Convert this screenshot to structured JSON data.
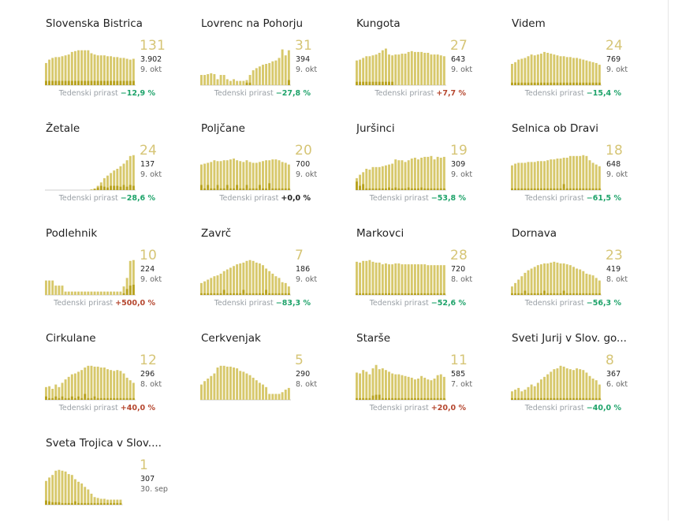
{
  "colors": {
    "bar": "#d7c86b",
    "bar_dark": "#b8a21e",
    "value": "#d6c576",
    "pos": "#b5462e",
    "neg": "#1ea36a",
    "zero": "#222222",
    "axis": "#cfcfcf"
  },
  "labels": {
    "growth_label": "Tedenski prirast"
  },
  "chart_data": [
    {
      "type": "bar",
      "title": "Slovenska Bistrica",
      "value": "131",
      "total": "3.902",
      "date": "9. okt",
      "growth": "−12,9 %",
      "growth_sign": "neg",
      "values": [
        52,
        60,
        64,
        66,
        66,
        68,
        70,
        72,
        78,
        80,
        82,
        82,
        82,
        82,
        75,
        72,
        70,
        70,
        70,
        68,
        68,
        66,
        66,
        64,
        64,
        62,
        60,
        62
      ],
      "dark": [
        10,
        10,
        10,
        10,
        10,
        10,
        10,
        10,
        10,
        10,
        10,
        10,
        10,
        10,
        10,
        10,
        10,
        10,
        10,
        10,
        10,
        10,
        10,
        10,
        10,
        10,
        10,
        10
      ]
    },
    {
      "type": "bar",
      "title": "Lovrenc na Pohorju",
      "value": "31",
      "total": "394",
      "date": "9. okt",
      "growth": "−27,8 %",
      "growth_sign": "neg",
      "values": [
        24,
        24,
        26,
        28,
        26,
        14,
        24,
        24,
        14,
        10,
        14,
        10,
        10,
        10,
        12,
        24,
        35,
        40,
        44,
        48,
        50,
        52,
        56,
        58,
        64,
        84,
        70,
        82
      ],
      "dark": [
        0,
        0,
        0,
        0,
        0,
        0,
        0,
        0,
        0,
        0,
        0,
        0,
        0,
        0,
        6,
        6,
        0,
        0,
        0,
        0,
        0,
        0,
        0,
        0,
        0,
        0,
        0,
        12
      ]
    },
    {
      "type": "bar",
      "title": "Kungota",
      "value": "27",
      "total": "643",
      "date": "9. okt",
      "growth": "+7,7 %",
      "growth_sign": "pos",
      "values": [
        58,
        60,
        64,
        68,
        68,
        70,
        72,
        76,
        82,
        86,
        72,
        70,
        72,
        72,
        74,
        74,
        78,
        80,
        78,
        78,
        78,
        76,
        76,
        72,
        72,
        72,
        70,
        68
      ],
      "dark": [
        8,
        8,
        8,
        8,
        8,
        8,
        8,
        8,
        8,
        8,
        8,
        8,
        0,
        0,
        0,
        0,
        0,
        0,
        0,
        0,
        0,
        0,
        0,
        0,
        0,
        0,
        0,
        0
      ]
    },
    {
      "type": "bar",
      "title": "Videm",
      "value": "24",
      "total": "769",
      "date": "9. okt",
      "growth": "−15,4 %",
      "growth_sign": "neg",
      "values": [
        50,
        54,
        60,
        62,
        64,
        68,
        72,
        70,
        72,
        74,
        78,
        76,
        74,
        72,
        70,
        68,
        68,
        66,
        66,
        64,
        64,
        62,
        60,
        58,
        56,
        54,
        52,
        48
      ],
      "dark": [
        6,
        6,
        6,
        6,
        6,
        6,
        6,
        6,
        6,
        6,
        6,
        6,
        6,
        6,
        6,
        6,
        6,
        6,
        6,
        6,
        6,
        6,
        6,
        6,
        6,
        6,
        6,
        6
      ]
    },
    {
      "type": "bar",
      "title": "Žetale",
      "value": "24",
      "total": "137",
      "date": "9. okt",
      "growth": "−28,6 %",
      "growth_sign": "neg",
      "values": [
        0,
        0,
        0,
        0,
        0,
        0,
        0,
        0,
        0,
        0,
        0,
        0,
        0,
        0,
        2,
        4,
        10,
        18,
        28,
        34,
        40,
        46,
        50,
        56,
        62,
        70,
        80,
        82
      ],
      "dark": [
        0,
        0,
        0,
        0,
        0,
        0,
        0,
        0,
        0,
        0,
        0,
        0,
        0,
        0,
        0,
        2,
        6,
        10,
        8,
        6,
        10,
        10,
        10,
        8,
        12,
        8,
        12,
        10
      ]
    },
    {
      "type": "bar",
      "title": "Poljčane",
      "value": "20",
      "total": "700",
      "date": "9. okt",
      "growth": "+0,0 %",
      "growth_sign": "zero",
      "values": [
        60,
        62,
        64,
        66,
        70,
        68,
        68,
        70,
        70,
        72,
        74,
        70,
        68,
        66,
        70,
        66,
        64,
        64,
        66,
        68,
        70,
        70,
        72,
        72,
        70,
        66,
        64,
        60
      ],
      "dark": [
        12,
        4,
        12,
        4,
        4,
        12,
        4,
        4,
        12,
        4,
        4,
        12,
        4,
        4,
        12,
        4,
        4,
        4,
        12,
        4,
        4,
        16,
        4,
        4,
        4,
        4,
        4,
        4
      ]
    },
    {
      "type": "bar",
      "title": "Juršinci",
      "value": "19",
      "total": "309",
      "date": "9. okt",
      "growth": "−53,8 %",
      "growth_sign": "neg",
      "values": [
        28,
        36,
        42,
        50,
        48,
        54,
        54,
        54,
        56,
        58,
        60,
        62,
        72,
        70,
        70,
        66,
        70,
        74,
        76,
        72,
        76,
        78,
        78,
        80,
        72,
        78,
        76,
        78
      ],
      "dark": [
        20,
        10,
        14,
        4,
        4,
        4,
        4,
        4,
        4,
        4,
        6,
        4,
        6,
        4,
        4,
        4,
        6,
        4,
        4,
        4,
        6,
        4,
        4,
        4,
        4,
        4,
        4,
        4
      ]
    },
    {
      "type": "bar",
      "title": "Selnica ob Dravi",
      "value": "18",
      "total": "648",
      "date": "9. okt",
      "growth": "−61,5 %",
      "growth_sign": "neg",
      "values": [
        58,
        62,
        64,
        64,
        64,
        66,
        66,
        66,
        68,
        68,
        68,
        70,
        72,
        72,
        74,
        74,
        76,
        76,
        80,
        80,
        80,
        80,
        82,
        80,
        70,
        64,
        60,
        56
      ],
      "dark": [
        4,
        4,
        4,
        4,
        4,
        4,
        4,
        4,
        4,
        4,
        4,
        4,
        4,
        4,
        4,
        4,
        14,
        4,
        4,
        4,
        4,
        4,
        4,
        4,
        4,
        4,
        4,
        4
      ]
    },
    {
      "type": "bar",
      "title": "Podlehnik",
      "value": "10",
      "total": "224",
      "date": "9. okt",
      "growth": "+500,0 %",
      "growth_sign": "pos",
      "values": [
        34,
        34,
        34,
        22,
        22,
        22,
        8,
        8,
        8,
        8,
        8,
        8,
        8,
        8,
        8,
        8,
        8,
        8,
        8,
        8,
        8,
        8,
        8,
        8,
        20,
        40,
        80,
        82
      ],
      "dark": [
        0,
        0,
        0,
        0,
        0,
        0,
        0,
        0,
        0,
        0,
        0,
        0,
        0,
        0,
        0,
        0,
        0,
        0,
        0,
        0,
        0,
        0,
        0,
        0,
        4,
        14,
        22,
        24
      ]
    },
    {
      "type": "bar",
      "title": "Zavrč",
      "value": "7",
      "total": "186",
      "date": "9. okt",
      "growth": "−83,3 %",
      "growth_sign": "neg",
      "values": [
        28,
        32,
        36,
        40,
        44,
        46,
        50,
        56,
        60,
        64,
        68,
        72,
        74,
        76,
        80,
        82,
        80,
        76,
        74,
        70,
        62,
        56,
        50,
        44,
        40,
        30,
        28,
        20
      ],
      "dark": [
        4,
        4,
        4,
        4,
        4,
        4,
        4,
        12,
        4,
        4,
        4,
        4,
        4,
        12,
        4,
        4,
        4,
        4,
        4,
        4,
        12,
        4,
        4,
        4,
        4,
        4,
        4,
        4
      ]
    },
    {
      "type": "bar",
      "title": "Markovci",
      "value": "28",
      "total": "720",
      "date": "8. okt",
      "growth": "−52,6 %",
      "growth_sign": "neg",
      "values": [
        78,
        76,
        80,
        80,
        82,
        78,
        76,
        76,
        72,
        74,
        72,
        72,
        74,
        74,
        72,
        72,
        72,
        72,
        72,
        72,
        72,
        72,
        70,
        70,
        70,
        70,
        70,
        70
      ],
      "dark": [
        4,
        4,
        4,
        4,
        4,
        4,
        4,
        4,
        4,
        4,
        4,
        4,
        4,
        4,
        4,
        4,
        4,
        4,
        4,
        4,
        4,
        4,
        4,
        4,
        4,
        4,
        4,
        4
      ]
    },
    {
      "type": "bar",
      "title": "Dornava",
      "value": "23",
      "total": "419",
      "date": "8. okt",
      "growth": "−56,3 %",
      "growth_sign": "neg",
      "values": [
        20,
        28,
        36,
        44,
        52,
        58,
        62,
        66,
        70,
        72,
        74,
        74,
        76,
        78,
        76,
        74,
        74,
        72,
        70,
        66,
        62,
        60,
        56,
        50,
        48,
        46,
        40,
        34
      ],
      "dark": [
        4,
        4,
        4,
        4,
        10,
        4,
        4,
        4,
        4,
        4,
        10,
        4,
        4,
        4,
        4,
        4,
        10,
        4,
        4,
        4,
        4,
        4,
        4,
        4,
        4,
        4,
        4,
        4
      ]
    },
    {
      "type": "bar",
      "title": "Cirkulane",
      "value": "12",
      "total": "296",
      "date": "8. okt",
      "growth": "+40,0 %",
      "growth_sign": "pos",
      "values": [
        30,
        32,
        26,
        36,
        30,
        40,
        48,
        54,
        60,
        62,
        66,
        70,
        76,
        80,
        80,
        78,
        78,
        76,
        76,
        72,
        70,
        68,
        70,
        68,
        62,
        52,
        46,
        40
      ],
      "dark": [
        8,
        4,
        4,
        8,
        4,
        8,
        4,
        4,
        8,
        4,
        8,
        4,
        14,
        4,
        4,
        8,
        4,
        4,
        4,
        4,
        4,
        4,
        4,
        4,
        4,
        4,
        4,
        4
      ]
    },
    {
      "type": "bar",
      "title": "Cerkvenjak",
      "value": "5",
      "total": "290",
      "date": "8. okt",
      "growth": "",
      "growth_sign": "none",
      "values": [
        36,
        44,
        50,
        56,
        62,
        76,
        80,
        80,
        78,
        78,
        76,
        74,
        68,
        66,
        62,
        58,
        52,
        46,
        40,
        36,
        30,
        14,
        14,
        14,
        14,
        18,
        24,
        28
      ],
      "dark": [
        0,
        0,
        0,
        0,
        0,
        0,
        0,
        0,
        0,
        0,
        0,
        0,
        0,
        0,
        0,
        0,
        0,
        0,
        0,
        0,
        0,
        0,
        0,
        0,
        0,
        0,
        0,
        0
      ]
    },
    {
      "type": "bar",
      "title": "Starše",
      "value": "11",
      "total": "585",
      "date": "7. okt",
      "growth": "+20,0 %",
      "growth_sign": "pos",
      "values": [
        64,
        62,
        70,
        66,
        60,
        74,
        82,
        72,
        74,
        70,
        66,
        62,
        60,
        60,
        58,
        56,
        54,
        52,
        48,
        50,
        56,
        52,
        48,
        46,
        50,
        58,
        60,
        54
      ],
      "dark": [
        4,
        4,
        4,
        4,
        4,
        10,
        12,
        12,
        4,
        4,
        4,
        4,
        4,
        4,
        4,
        4,
        4,
        4,
        4,
        4,
        4,
        4,
        4,
        4,
        4,
        4,
        4,
        4
      ]
    },
    {
      "type": "bar",
      "title": "Sveti Jurij v Slov. go...",
      "value": "8",
      "total": "367",
      "date": "6. okt",
      "growth": "−40,0 %",
      "growth_sign": "neg",
      "values": [
        20,
        24,
        28,
        20,
        24,
        30,
        36,
        32,
        40,
        48,
        54,
        60,
        66,
        72,
        74,
        80,
        78,
        74,
        72,
        70,
        74,
        72,
        70,
        64,
        56,
        50,
        46,
        36
      ],
      "dark": [
        4,
        4,
        4,
        4,
        4,
        4,
        4,
        4,
        4,
        4,
        4,
        4,
        4,
        4,
        4,
        4,
        4,
        4,
        4,
        4,
        4,
        4,
        4,
        4,
        4,
        4,
        4,
        4
      ]
    },
    {
      "type": "bar",
      "title": "Sveta Trojica v Slov....",
      "value": "1",
      "total": "307",
      "date": "30. sep",
      "growth": "",
      "growth_sign": "none",
      "values": [
        56,
        64,
        70,
        80,
        82,
        80,
        78,
        72,
        70,
        60,
        54,
        50,
        42,
        36,
        26,
        18,
        16,
        14,
        14,
        12,
        12,
        12,
        12,
        12
      ],
      "dark": [
        10,
        8,
        6,
        6,
        6,
        4,
        4,
        4,
        4,
        8,
        4,
        4,
        4,
        4,
        4,
        4,
        4,
        4,
        4,
        4,
        4,
        4,
        4,
        4
      ]
    }
  ]
}
